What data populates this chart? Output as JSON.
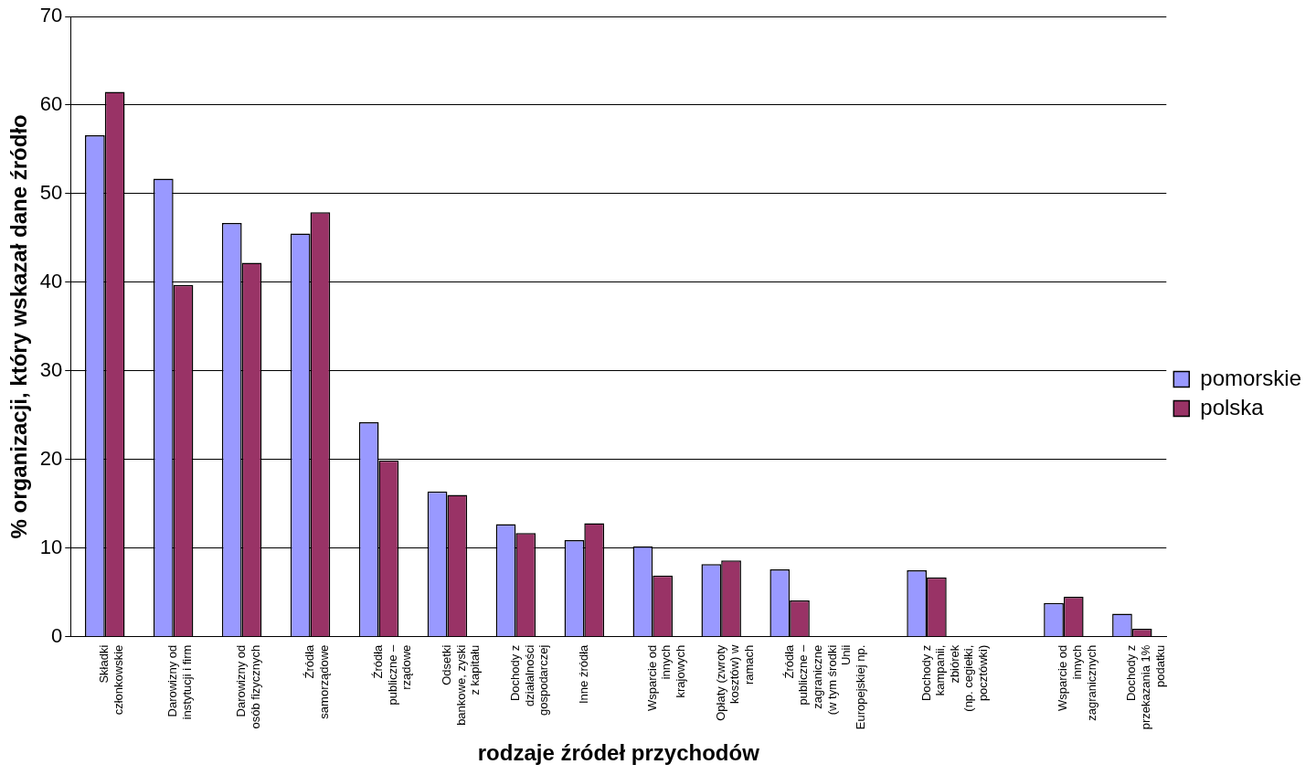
{
  "chart_data": {
    "type": "bar",
    "xlabel": "rodzaje źródeł przychodów",
    "ylabel": "% organizacji, który wskazał dane źródło",
    "categories": [
      "Składki\nczłonkowskie",
      "Darowizny od\ninstytucji i firm",
      "Darowizny od\nosób fizycznych",
      "Źródła\nsamorządowe",
      "Źródła\npubliczne –\nrządowe",
      "Odsetki\nbankowe, zyski\nz kapitału",
      "Dochody z\ndziałalności\ngospodarczej",
      "Inne źródła",
      "Wsparcie od\ninnych\nkrajowych",
      "Opłaty (zwroty\nkosztów) w\nramach",
      "Źródła\npubliczne –\nzagraniczne\n(w tym środki\nUnii\nEuropejskiej np.",
      null,
      "Dochody z\nkampanii,\nzbiórek\n(np. cegiełki,\npocztówki)",
      null,
      "Wsparcie od\ninnych\nzagranicznych",
      "Dochody z\nprzekazania 1%\npodatku"
    ],
    "series": [
      {
        "name": "pomorskie",
        "color": "#9999ff",
        "values": [
          56.6,
          51.7,
          46.7,
          45.5,
          24.2,
          16.4,
          12.7,
          10.9,
          10.2,
          8.2,
          7.6,
          null,
          7.5,
          null,
          3.8,
          2.6
        ]
      },
      {
        "name": "polska",
        "color": "#993366",
        "values": [
          61.5,
          39.7,
          42.2,
          47.9,
          19.9,
          16.0,
          11.7,
          12.8,
          6.9,
          8.6,
          4.1,
          null,
          6.7,
          null,
          4.5,
          0.9
        ]
      }
    ],
    "ylim": [
      0,
      70
    ],
    "yticks": [
      0,
      10,
      20,
      30,
      40,
      50,
      60,
      70
    ],
    "grid": "y",
    "legend": "right"
  }
}
